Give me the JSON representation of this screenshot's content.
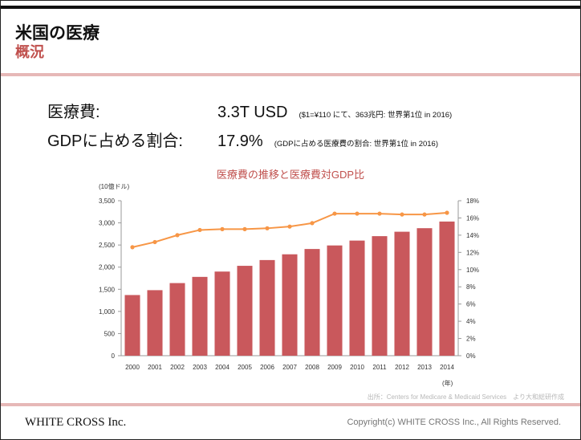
{
  "header": {
    "title": "米国の医療",
    "subtitle": "概況"
  },
  "stats": [
    {
      "label": "医療費:",
      "value": "3.3T USD",
      "note": "($1=¥110 にて、363兆円:  世界第1位 in 2016)"
    },
    {
      "label": "GDPに占める割合:",
      "value": "17.9%",
      "note": "(GDPに占める医療費の割合:  世界第1位 in 2016)"
    }
  ],
  "chart_data": {
    "type": "bar",
    "title": "医療費の推移と医療費対GDP比",
    "ylabel": "(10億ドル)",
    "xlabel": "(年)",
    "categories": [
      "2000",
      "2001",
      "2002",
      "2003",
      "2004",
      "2005",
      "2006",
      "2007",
      "2008",
      "2009",
      "2010",
      "2011",
      "2012",
      "2013",
      "2014"
    ],
    "series": [
      {
        "values": [
          1370,
          1480,
          1640,
          1780,
          1900,
          2030,
          2160,
          2290,
          2410,
          2490,
          2600,
          2700,
          2800,
          2880,
          3030
        ],
        "color": "#c9585c",
        "axis": "left"
      },
      {
        "values": [
          12.6,
          13.2,
          14.0,
          14.6,
          14.7,
          14.7,
          14.8,
          15.0,
          15.4,
          16.5,
          16.5,
          16.5,
          16.4,
          16.4,
          16.6
        ],
        "color": "#f79646",
        "axis": "right",
        "type": "line"
      }
    ],
    "ylim": [
      0,
      3500
    ],
    "yticks": [
      "0",
      "500",
      "1,000",
      "1,500",
      "2,000",
      "2,500",
      "3,000",
      "3,500"
    ],
    "y2lim": [
      0,
      18
    ],
    "y2ticks": [
      "0%",
      "2%",
      "4%",
      "6%",
      "8%",
      "10%",
      "12%",
      "14%",
      "16%",
      "18%"
    ],
    "grid": false,
    "legend": "none"
  },
  "footer": {
    "source": "出所：Centers for Medicare & Medicaid Services　より大和総研作成",
    "company": "WHITE CROSS Inc.",
    "copyright": "Copyright(c) WHITE CROSS Inc., All Rights Reserved."
  }
}
